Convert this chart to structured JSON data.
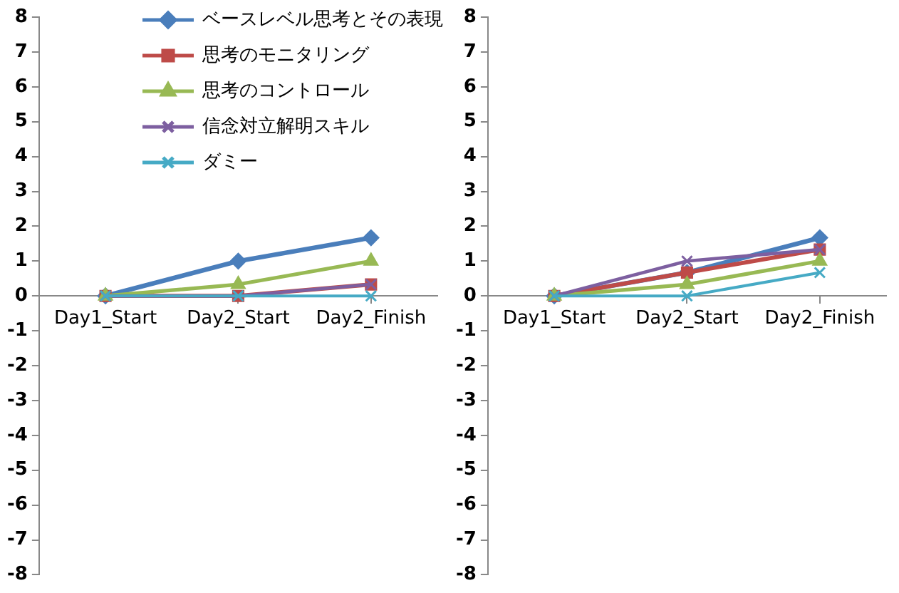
{
  "chart_data": [
    {
      "type": "line",
      "categories": [
        "Day1_Start",
        "Day2_Start",
        "Day2_Finish"
      ],
      "ylim": [
        -8,
        8
      ],
      "yticks": [
        -8,
        -7,
        -6,
        -5,
        -4,
        -3,
        -2,
        -1,
        0,
        1,
        2,
        3,
        4,
        5,
        6,
        7,
        8
      ],
      "grid": false,
      "legend": "top right",
      "series": [
        {
          "name": "ベースレベル思考とその表現",
          "color": "#4a7ebb",
          "marker": "diamond",
          "values": [
            0,
            1,
            1.67
          ]
        },
        {
          "name": "思考のモニタリング",
          "color": "#be4b48",
          "marker": "square",
          "values": [
            0,
            0,
            0.33
          ]
        },
        {
          "name": "思考のコントロール",
          "color": "#98b954",
          "marker": "triangle",
          "values": [
            0,
            0.33,
            1
          ]
        },
        {
          "name": "信念対立解明スキル",
          "color": "#7d5fa0",
          "marker": "cross",
          "values": [
            0,
            0,
            0.33
          ]
        },
        {
          "name": "ダミー",
          "color": "#46aac5",
          "marker": "cross",
          "values": [
            0,
            0,
            0
          ]
        }
      ]
    },
    {
      "type": "line",
      "categories": [
        "Day1_Start",
        "Day2_Start",
        "Day2_Finish"
      ],
      "ylim": [
        -8,
        8
      ],
      "yticks": [
        -8,
        -7,
        -6,
        -5,
        -4,
        -3,
        -2,
        -1,
        0,
        1,
        2,
        3,
        4,
        5,
        6,
        7,
        8
      ],
      "grid": false,
      "series": [
        {
          "color": "#4a7ebb",
          "marker": "diamond",
          "values": [
            0,
            0.67,
            1.67
          ]
        },
        {
          "color": "#be4b48",
          "marker": "square",
          "values": [
            0,
            0.67,
            1.33
          ]
        },
        {
          "color": "#98b954",
          "marker": "triangle",
          "values": [
            0,
            0.33,
            1
          ]
        },
        {
          "color": "#7d5fa0",
          "marker": "cross",
          "values": [
            0,
            1,
            1.33
          ]
        },
        {
          "color": "#46aac5",
          "marker": "cross",
          "values": [
            0,
            0,
            0.67
          ]
        }
      ]
    }
  ]
}
